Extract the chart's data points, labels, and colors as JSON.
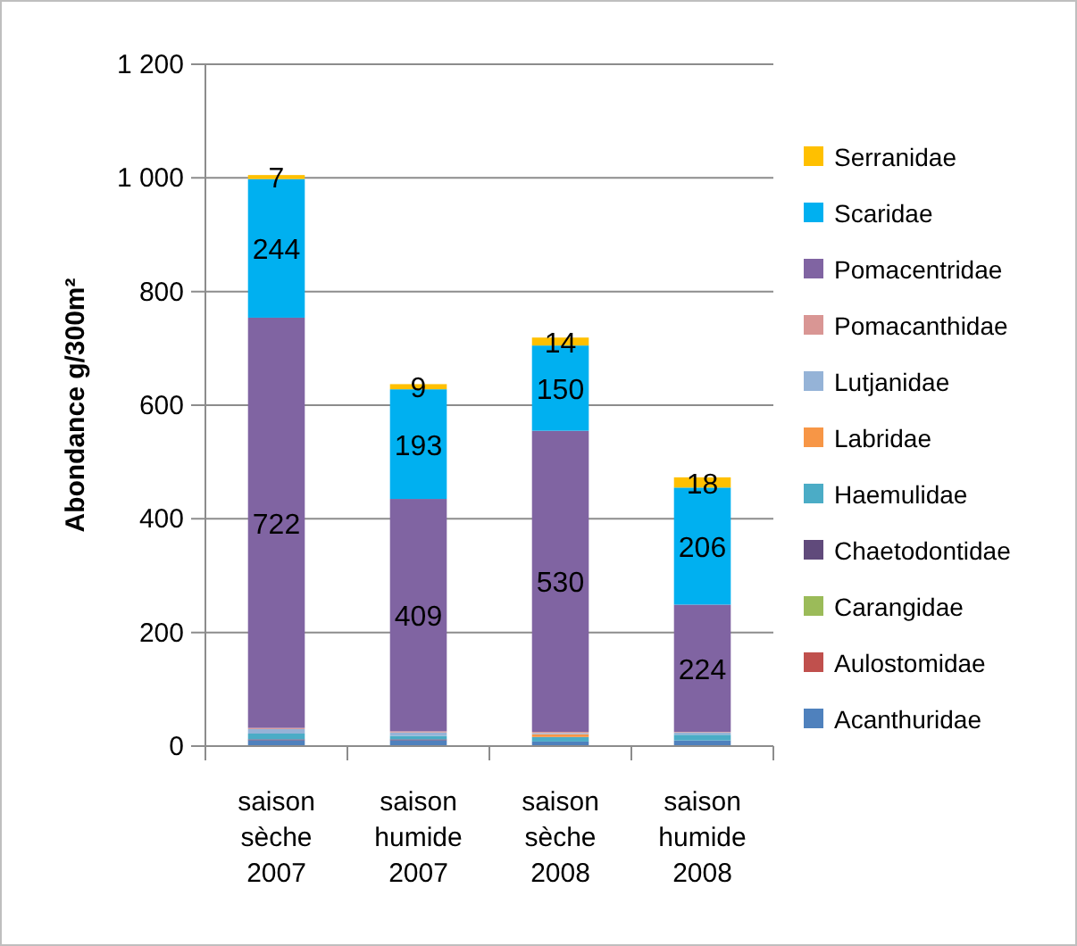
{
  "chart_data": {
    "type": "bar",
    "stacked": true,
    "ylabel": "Abondance g/300m²",
    "categories": [
      "saison sèche 2007",
      "saison humide 2007",
      "saison sèche 2008",
      "saison humide 2008"
    ],
    "series": [
      {
        "name": "Acanthuridae",
        "color": "#4f81bd",
        "values": [
          10,
          10,
          8,
          10
        ]
      },
      {
        "name": "Aulostomidae",
        "color": "#c0504d",
        "values": [
          0,
          0,
          0,
          0
        ]
      },
      {
        "name": "Carangidae",
        "color": "#9bbb59",
        "values": [
          0,
          0,
          0,
          0
        ]
      },
      {
        "name": "Chaetodontidae",
        "color": "#604a7b",
        "values": [
          2,
          2,
          0,
          0
        ]
      },
      {
        "name": "Haemulidae",
        "color": "#4bacc6",
        "values": [
          10,
          6,
          8,
          10
        ]
      },
      {
        "name": "Labridae",
        "color": "#f79646",
        "values": [
          0,
          0,
          5,
          0
        ]
      },
      {
        "name": "Lutjanidae",
        "color": "#95b3d7",
        "values": [
          8,
          6,
          2,
          4
        ]
      },
      {
        "name": "Pomacanthidae",
        "color": "#d99694",
        "values": [
          2,
          2,
          2,
          1
        ]
      },
      {
        "name": "Pomacentridae",
        "color": "#8064a2",
        "values": [
          722,
          409,
          530,
          224
        ],
        "value_labels": [
          "722",
          "409",
          "530",
          "224"
        ]
      },
      {
        "name": "Scaridae",
        "color": "#00b0f0",
        "values": [
          244,
          193,
          150,
          206
        ],
        "value_labels": [
          "244",
          "193",
          "150",
          "206"
        ]
      },
      {
        "name": "Serranidae",
        "color": "#ffc000",
        "values": [
          7,
          9,
          14,
          18
        ],
        "value_labels": [
          "7",
          "9",
          "14",
          "18"
        ]
      }
    ],
    "ylim": [
      0,
      1200
    ],
    "yticks": [
      0,
      200,
      400,
      600,
      800,
      {
        "value": 1000,
        "label": "1 000"
      },
      {
        "value": 1200,
        "label": "1 200"
      }
    ],
    "grid": "y",
    "legend": "right"
  }
}
